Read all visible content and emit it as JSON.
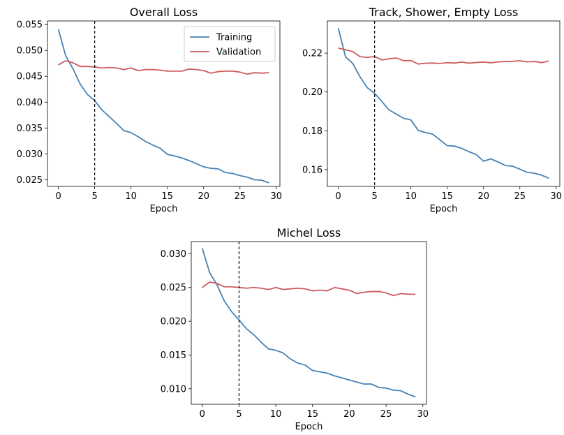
{
  "colors": {
    "training": "#4682b4",
    "validation": "#cd5c5c",
    "marker_line": "#000000"
  },
  "legend": {
    "training_label": "Training",
    "validation_label": "Validation",
    "placement": "upper right of first panel"
  },
  "chart_data": [
    {
      "type": "line",
      "title": "Overall Loss",
      "xlabel": "Epoch",
      "ylabel": "",
      "xlim": [
        -1.5,
        30.5
      ],
      "ylim": [
        0.0237,
        0.0557
      ],
      "xticks": [
        0,
        5,
        10,
        15,
        20,
        25,
        30
      ],
      "yticks": [
        0.025,
        0.03,
        0.035,
        0.04,
        0.045,
        0.05,
        0.055
      ],
      "ytick_labels": [
        "0.025",
        "0.030",
        "0.035",
        "0.040",
        "0.045",
        "0.050",
        "0.055"
      ],
      "vline_x": 5,
      "legend": true,
      "x": [
        0,
        1,
        2,
        3,
        4,
        5,
        6,
        7,
        8,
        9,
        10,
        11,
        12,
        13,
        14,
        15,
        16,
        17,
        18,
        19,
        20,
        21,
        22,
        23,
        24,
        25,
        26,
        27,
        28,
        29
      ],
      "series": [
        {
          "name": "Training",
          "values": [
            0.0541,
            0.049,
            0.0465,
            0.0435,
            0.0415,
            0.0403,
            0.0385,
            0.0372,
            0.0359,
            0.0345,
            0.0341,
            0.0333,
            0.0324,
            0.0317,
            0.0311,
            0.0299,
            0.0296,
            0.0292,
            0.0287,
            0.0281,
            0.0275,
            0.0272,
            0.0271,
            0.0264,
            0.0262,
            0.0258,
            0.0255,
            0.025,
            0.0249,
            0.0244
          ]
        },
        {
          "name": "Validation",
          "values": [
            0.0472,
            0.048,
            0.0476,
            0.0469,
            0.0469,
            0.0468,
            0.0466,
            0.0467,
            0.0466,
            0.0463,
            0.0466,
            0.0461,
            0.0463,
            0.0463,
            0.0462,
            0.046,
            0.046,
            0.046,
            0.0464,
            0.0463,
            0.0461,
            0.0456,
            0.0459,
            0.046,
            0.046,
            0.0458,
            0.0454,
            0.0457,
            0.0456,
            0.0457
          ]
        }
      ]
    },
    {
      "type": "line",
      "title": "Track, Shower, Empty Loss",
      "xlabel": "Epoch",
      "ylabel": "",
      "xlim": [
        -1.5,
        30.5
      ],
      "ylim": [
        0.1513,
        0.2366
      ],
      "xticks": [
        0,
        5,
        10,
        15,
        20,
        25,
        30
      ],
      "yticks": [
        0.16,
        0.18,
        0.2,
        0.22
      ],
      "ytick_labels": [
        "0.16",
        "0.18",
        "0.20",
        "0.22"
      ],
      "vline_x": 5,
      "legend": false,
      "x": [
        0,
        1,
        2,
        3,
        4,
        5,
        6,
        7,
        8,
        9,
        10,
        11,
        12,
        13,
        14,
        15,
        16,
        17,
        18,
        19,
        20,
        21,
        22,
        23,
        24,
        25,
        26,
        27,
        28,
        29
      ],
      "series": [
        {
          "name": "Training",
          "values": [
            0.2329,
            0.2181,
            0.2147,
            0.2077,
            0.2022,
            0.1993,
            0.1951,
            0.1907,
            0.1886,
            0.1864,
            0.1856,
            0.1802,
            0.1791,
            0.1782,
            0.1753,
            0.1723,
            0.1721,
            0.1709,
            0.1692,
            0.1677,
            0.1643,
            0.1655,
            0.1639,
            0.1621,
            0.1617,
            0.1602,
            0.1586,
            0.1581,
            0.1571,
            0.1555
          ]
        },
        {
          "name": "Validation",
          "values": [
            0.2226,
            0.2217,
            0.2208,
            0.2182,
            0.2178,
            0.2183,
            0.2165,
            0.2171,
            0.2175,
            0.2161,
            0.2162,
            0.2144,
            0.2148,
            0.2149,
            0.2147,
            0.2151,
            0.2149,
            0.2154,
            0.2148,
            0.2152,
            0.2154,
            0.215,
            0.2155,
            0.2157,
            0.2158,
            0.2161,
            0.2155,
            0.2157,
            0.2151,
            0.216
          ]
        }
      ]
    },
    {
      "type": "line",
      "title": "Michel Loss",
      "xlabel": "Epoch",
      "ylabel": "",
      "xlim": [
        -1.5,
        30.5
      ],
      "ylim": [
        0.0077,
        0.0318
      ],
      "xticks": [
        0,
        5,
        10,
        15,
        20,
        25,
        30
      ],
      "yticks": [
        0.01,
        0.015,
        0.02,
        0.025,
        0.03
      ],
      "ytick_labels": [
        "0.010",
        "0.015",
        "0.020",
        "0.025",
        "0.030"
      ],
      "vline_x": 5,
      "legend": false,
      "x": [
        0,
        1,
        2,
        3,
        4,
        5,
        6,
        7,
        8,
        9,
        10,
        11,
        12,
        13,
        14,
        15,
        16,
        17,
        18,
        19,
        20,
        21,
        22,
        23,
        24,
        25,
        26,
        27,
        28,
        29
      ],
      "series": [
        {
          "name": "Training",
          "values": [
            0.0308,
            0.0272,
            0.0254,
            0.023,
            0.0214,
            0.0202,
            0.0189,
            0.018,
            0.0169,
            0.0159,
            0.0157,
            0.0153,
            0.0144,
            0.0138,
            0.0135,
            0.0127,
            0.0125,
            0.0123,
            0.0119,
            0.0116,
            0.0113,
            0.011,
            0.0107,
            0.0107,
            0.0102,
            0.0101,
            0.0098,
            0.0097,
            0.0092,
            0.0088
          ]
        },
        {
          "name": "Validation",
          "values": [
            0.025,
            0.0258,
            0.0256,
            0.0251,
            0.0251,
            0.025,
            0.0249,
            0.025,
            0.0249,
            0.0247,
            0.025,
            0.0247,
            0.0248,
            0.0249,
            0.0248,
            0.0245,
            0.0246,
            0.0245,
            0.025,
            0.0248,
            0.0246,
            0.0241,
            0.0243,
            0.0244,
            0.0244,
            0.0242,
            0.0238,
            0.0241,
            0.024,
            0.024
          ]
        }
      ]
    }
  ]
}
